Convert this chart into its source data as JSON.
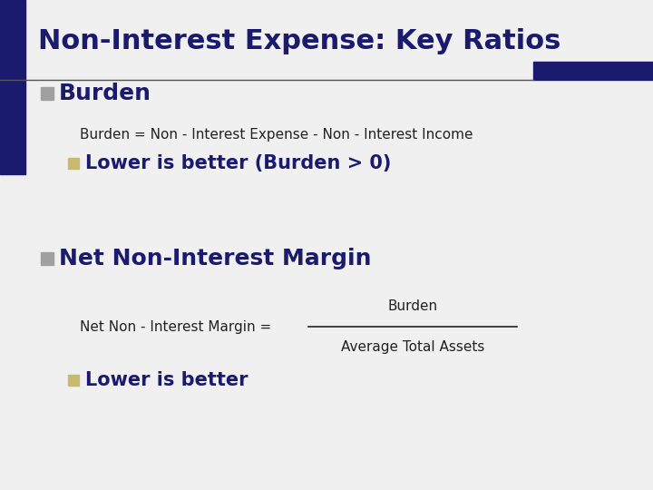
{
  "title": "Non-Interest Expense: Key Ratios",
  "title_color": "#1a1a6e",
  "title_fontsize": 22,
  "bg_color": "#f0f0f0",
  "left_bar_color": "#1a1a6e",
  "right_bar_color": "#1a1a6e",
  "bullet_color_main": "#a0a0a0",
  "bullet_color_sub": "#c8b870",
  "dark_blue": "#1a1a6e",
  "formula_color": "#222222",
  "section1_label": "Burden",
  "section1_formula": "Burden = Non - Interest Expense - Non - Interest Income",
  "section1_sub": "Lower is better (Burden > 0)",
  "section2_label": "Net Non-Interest Margin",
  "section2_formula_left": "Net Non - Interest Margin = ",
  "section2_formula_num": "Burden",
  "section2_formula_den": "Average Total Assets",
  "section2_sub": "Lower is better",
  "title_fs": 22,
  "section_fs": 18,
  "formula_fs": 11,
  "sub_fs": 15
}
